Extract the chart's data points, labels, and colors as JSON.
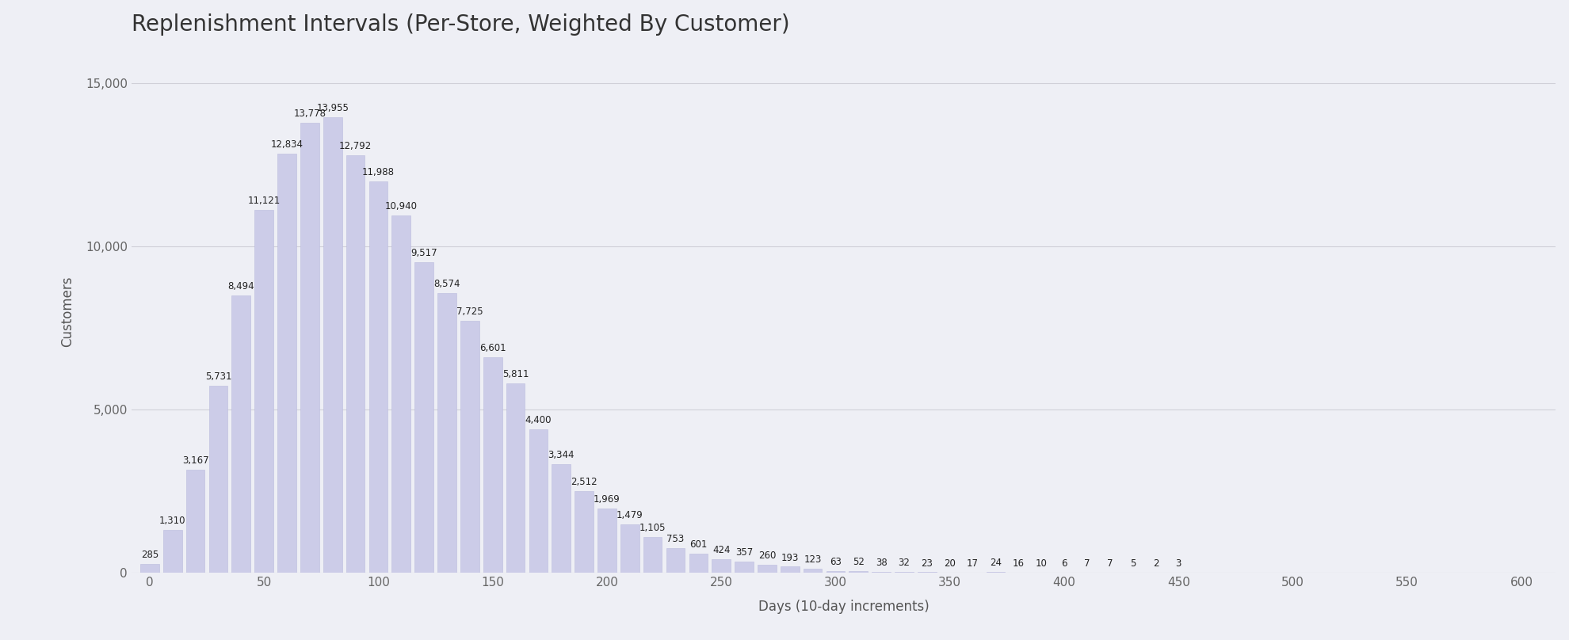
{
  "title": "Replenishment Intervals (Per-Store, Weighted By Customer)",
  "xlabel": "Days (10-day increments)",
  "ylabel": "Customers",
  "bar_color": "#cccce8",
  "bar_edge_color": "#bbbbdd",
  "background_color": "#eeeff5",
  "axes_background": "#eeeff5",
  "values": [
    285,
    1310,
    3167,
    5731,
    8494,
    11121,
    12834,
    13778,
    13955,
    12792,
    11988,
    10940,
    9517,
    8574,
    7725,
    6601,
    5811,
    4400,
    3344,
    2512,
    1969,
    1479,
    1105,
    753,
    601,
    424,
    357,
    260,
    193,
    123,
    63,
    52,
    38,
    32,
    23,
    20,
    17,
    24,
    16,
    10,
    6,
    7,
    7,
    5,
    2,
    3
  ],
  "x_start": 0,
  "x_step": 10,
  "ylim": [
    0,
    16000
  ],
  "yticks": [
    0,
    5000,
    10000,
    15000
  ],
  "ytick_labels": [
    "0",
    "5,000",
    "10,000",
    "15,000"
  ],
  "label_fontsize": 8.5,
  "title_fontsize": 20,
  "axis_label_fontsize": 12,
  "xlim_left": -8,
  "xlim_right": 615
}
